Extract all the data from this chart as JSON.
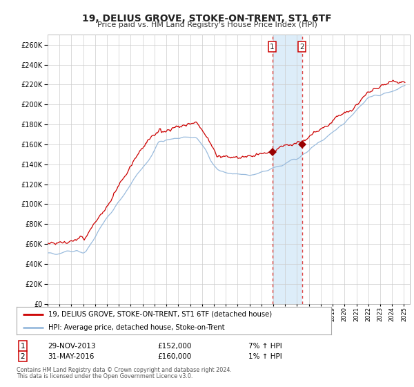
{
  "title": "19, DELIUS GROVE, STOKE-ON-TRENT, ST1 6TF",
  "subtitle": "Price paid vs. HM Land Registry's House Price Index (HPI)",
  "legend_line1": "19, DELIUS GROVE, STOKE-ON-TRENT, ST1 6TF (detached house)",
  "legend_line2": "HPI: Average price, detached house, Stoke-on-Trent",
  "transaction1_date": "29-NOV-2013",
  "transaction1_price": "£152,000",
  "transaction1_hpi": "7% ↑ HPI",
  "transaction2_date": "31-MAY-2016",
  "transaction2_price": "£160,000",
  "transaction2_hpi": "1% ↑ HPI",
  "footer1": "Contains HM Land Registry data © Crown copyright and database right 2024.",
  "footer2": "This data is licensed under the Open Government Licence v3.0.",
  "red_line_color": "#cc0000",
  "blue_line_color": "#99bbdd",
  "marker_color": "#990000",
  "vline_color": "#dd4444",
  "shade_color": "#d8eaf8",
  "grid_color": "#cccccc",
  "background_color": "#ffffff",
  "ylim": [
    0,
    270000
  ],
  "yticks": [
    0,
    20000,
    40000,
    60000,
    80000,
    100000,
    120000,
    140000,
    160000,
    180000,
    200000,
    220000,
    240000,
    260000
  ],
  "transaction1_x": 2013.91,
  "transaction1_y": 152000,
  "transaction2_x": 2016.41,
  "transaction2_y": 160000,
  "xmin": 1995,
  "xmax": 2025.5
}
